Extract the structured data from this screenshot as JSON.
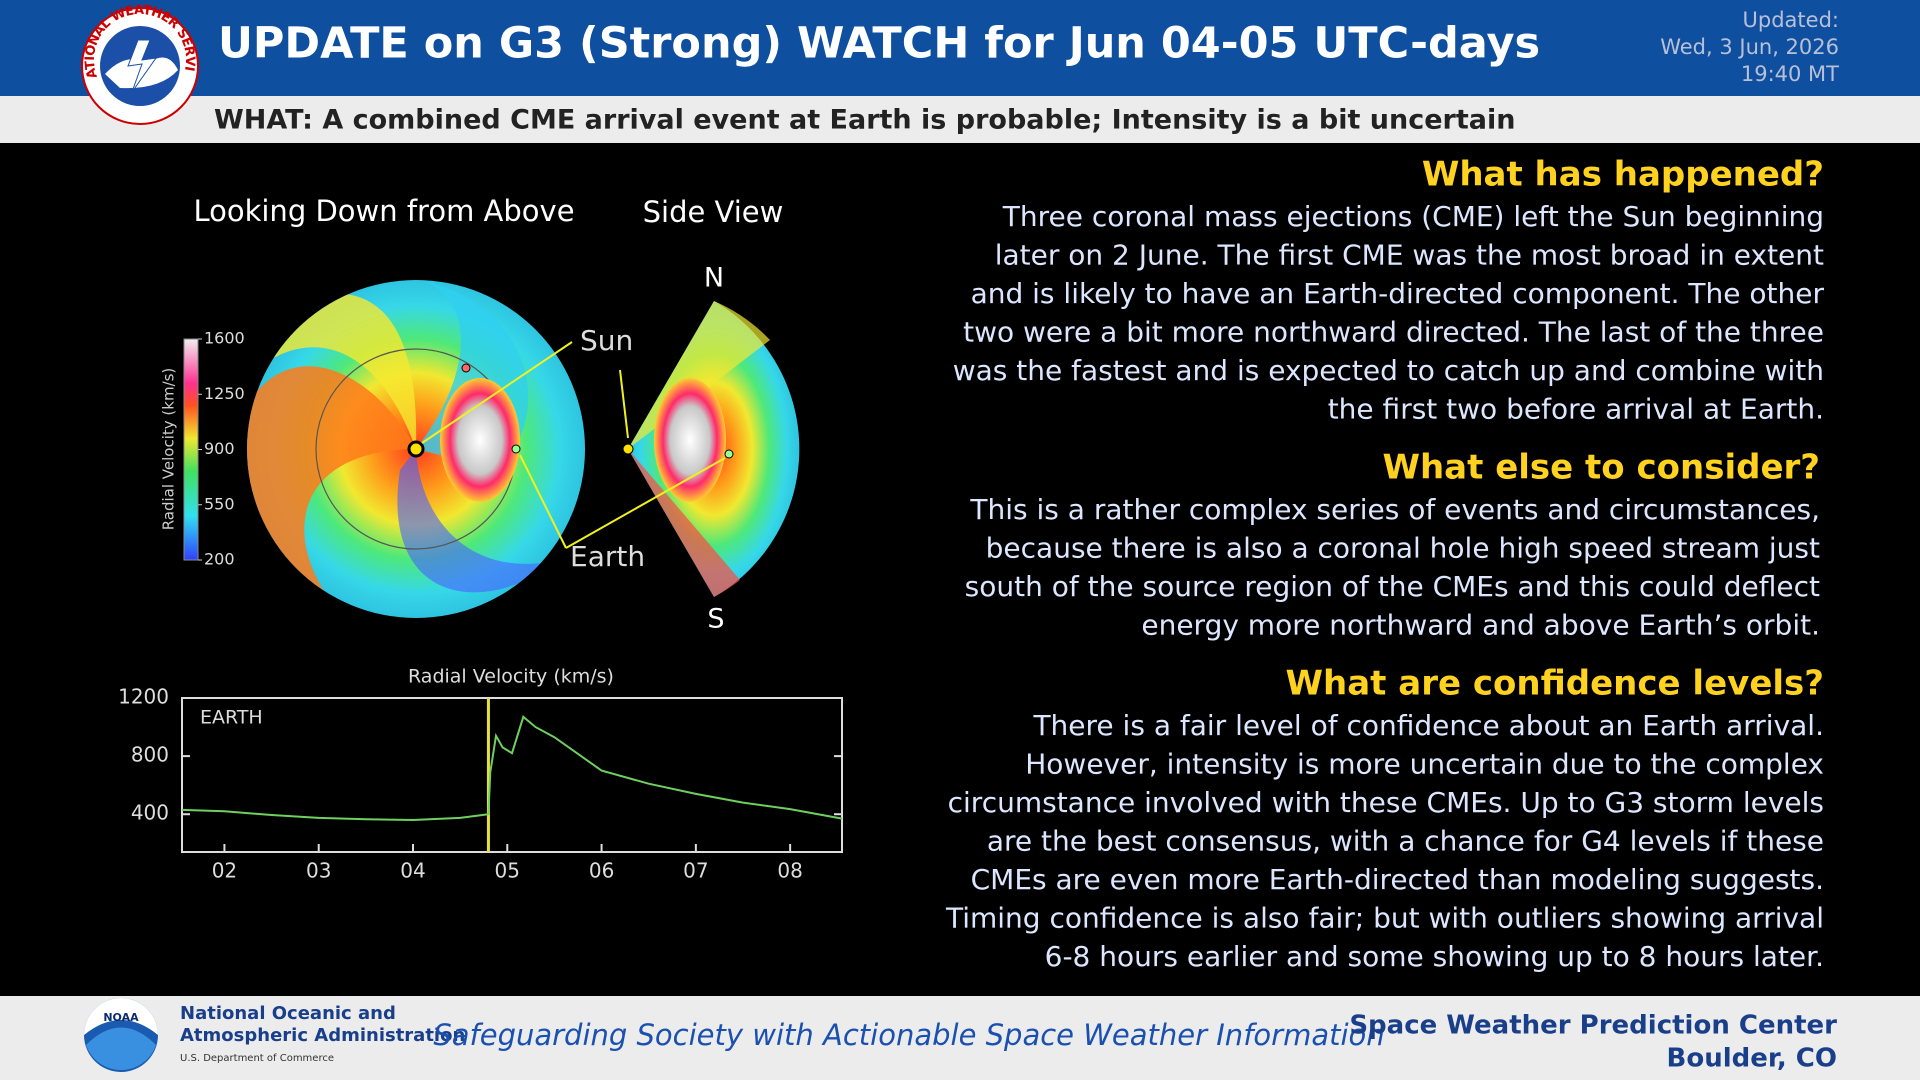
{
  "header": {
    "title": "UPDATE on G3 (Strong) WATCH for Jun 04-05 UTC-days",
    "updated": [
      "Updated:",
      "Wed, 3 Jun, 2026",
      "19:40 MT"
    ],
    "logo_text": "NATIONAL WEATHER SERVICE",
    "what": "WHAT: A combined CME arrival event at Earth is probable; Intensity is a bit uncertain"
  },
  "model": {
    "top_view_title": "Looking Down from Above",
    "side_view_title": "Side View",
    "north": "N",
    "south": "S",
    "sun_label": "Sun",
    "earth_label": "Earth",
    "colorbar": {
      "label": "Radial Velocity (km/s)",
      "range": [
        200,
        1600
      ],
      "ticks": [
        1600,
        1250,
        900,
        550,
        200
      ]
    }
  },
  "chart_data": {
    "type": "line",
    "title": "Radial Velocity (km/s)",
    "annotation": "EARTH",
    "x": [
      1.55,
      2,
      2.5,
      3,
      3.5,
      4,
      4.5,
      4.8,
      4.82,
      4.88,
      4.95,
      5.05,
      5.17,
      5.3,
      5.5,
      6,
      6.5,
      7,
      7.5,
      8,
      8.55
    ],
    "series": [
      {
        "color": "#6fcf5f",
        "values": [
          430,
          420,
          395,
          375,
          365,
          360,
          375,
          400,
          690,
          940,
          860,
          820,
          1070,
          1000,
          930,
          700,
          610,
          540,
          480,
          435,
          370
        ]
      }
    ],
    "xlim": [
      1.55,
      8.55
    ],
    "ylim": [
      140,
      1200
    ],
    "xticks": [
      {
        "value": 2,
        "label": "02"
      },
      {
        "value": 3,
        "label": "03"
      },
      {
        "value": 4,
        "label": "04"
      },
      {
        "value": 5,
        "label": "05"
      },
      {
        "value": 6,
        "label": "06"
      },
      {
        "value": 7,
        "label": "07"
      },
      {
        "value": 8,
        "label": "08"
      }
    ],
    "yticks": [
      400,
      800,
      1200
    ],
    "vlines": [
      {
        "x": 4.8,
        "color": "#e8e03a"
      }
    ]
  },
  "sections": [
    {
      "heading": "What has happened?",
      "lines": [
        "Three coronal mass ejections (CME) left the Sun beginning",
        "later on 2 June. The first CME was the most broad in extent",
        "and is likely to have an Earth-directed component. The other",
        "two were a bit more northward directed. The last of the three",
        "was the fastest and is expected to catch up and combine with",
        "the first two before arrival at Earth."
      ]
    },
    {
      "heading": "What else to consider?",
      "lines": [
        "This is a rather complex series of events and circumstances,",
        "because there is also a coronal hole high speed stream just",
        "south of the source region of the CMEs and this could deflect",
        "energy more northward and above Earth’s orbit."
      ]
    },
    {
      "heading": "What are confidence levels?",
      "lines": [
        "There is a fair level of confidence about an Earth arrival.",
        "However, intensity is more uncertain due to the complex",
        "circumstance involved with these CMEs. Up to G3 storm levels",
        "are the best consensus, with a chance for G4 levels if these",
        "CMEs are even more Earth-directed than modeling suggests.",
        "Timing confidence is also fair; but with outliers showing arrival",
        "6-8 hours earlier and some showing up to 8 hours later."
      ]
    }
  ],
  "footer": {
    "noaa_logo": "NOAA",
    "agency": [
      "National Oceanic and",
      "Atmospheric Administration"
    ],
    "department": "U.S. Department of Commerce",
    "tagline": "Safeguarding Society with Actionable Space Weather Information",
    "center": [
      "Space Weather Prediction Center",
      "Boulder, CO"
    ]
  }
}
